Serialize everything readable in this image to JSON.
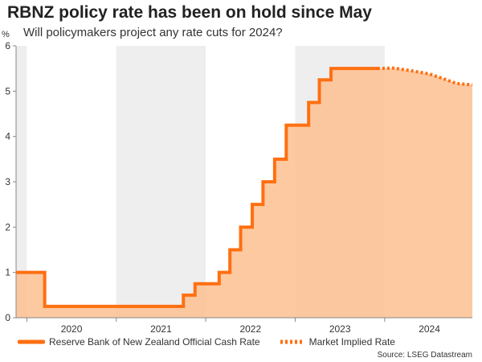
{
  "header": {
    "title": "RBNZ policy rate has been on hold since May",
    "subtitle": "Will policymakers project any rate cuts for 2024?",
    "unit": "%"
  },
  "source": "Source: LSEG Datastream",
  "colors": {
    "official_line": "#FF6F11",
    "fill": "#FDBF91",
    "shade": "#EEEEEE",
    "axis": "#888888"
  },
  "chart_data": {
    "type": "line",
    "title": "RBNZ policy rate has been on hold since May",
    "subtitle": "Will policymakers project any rate cuts for 2024?",
    "ylabel": "%",
    "xlabel": "",
    "xlim": [
      2019.88,
      2024.98
    ],
    "ylim": [
      0,
      6
    ],
    "y_ticks": [
      0,
      1,
      2,
      3,
      4,
      5,
      6
    ],
    "x_tick_labels": [
      {
        "label": "2020",
        "x": 2020.5
      },
      {
        "label": "2021",
        "x": 2021.5
      },
      {
        "label": "2022",
        "x": 2022.5
      },
      {
        "label": "2023",
        "x": 2023.5
      },
      {
        "label": "2024",
        "x": 2024.5
      }
    ],
    "shaded_years": [
      [
        2019.88,
        2020.0
      ],
      [
        2021.0,
        2022.0
      ],
      [
        2023.0,
        2024.0
      ]
    ],
    "legend": [
      {
        "name": "Reserve Bank of New Zealand Official Cash Rate",
        "style": "solid"
      },
      {
        "name": "Market Implied Rate",
        "style": "dotted"
      }
    ],
    "series": [
      {
        "name": "Reserve Bank of New Zealand Official Cash Rate",
        "style": "step",
        "x": [
          2019.88,
          2020.2,
          2021.75,
          2021.88,
          2022.0,
          2022.15,
          2022.27,
          2022.39,
          2022.52,
          2022.64,
          2022.77,
          2022.9,
          2023.15,
          2023.27,
          2023.4,
          2023.92
        ],
        "values": [
          1.0,
          0.25,
          0.5,
          0.75,
          0.75,
          1.0,
          1.5,
          2.0,
          2.5,
          3.0,
          3.5,
          4.25,
          4.75,
          5.25,
          5.5,
          5.5
        ]
      },
      {
        "name": "Market Implied Rate",
        "style": "dotted",
        "x": [
          2023.92,
          2024.1,
          2024.3,
          2024.5,
          2024.65,
          2024.8,
          2024.98
        ],
        "values": [
          5.5,
          5.51,
          5.45,
          5.38,
          5.28,
          5.17,
          5.14
        ]
      }
    ]
  }
}
